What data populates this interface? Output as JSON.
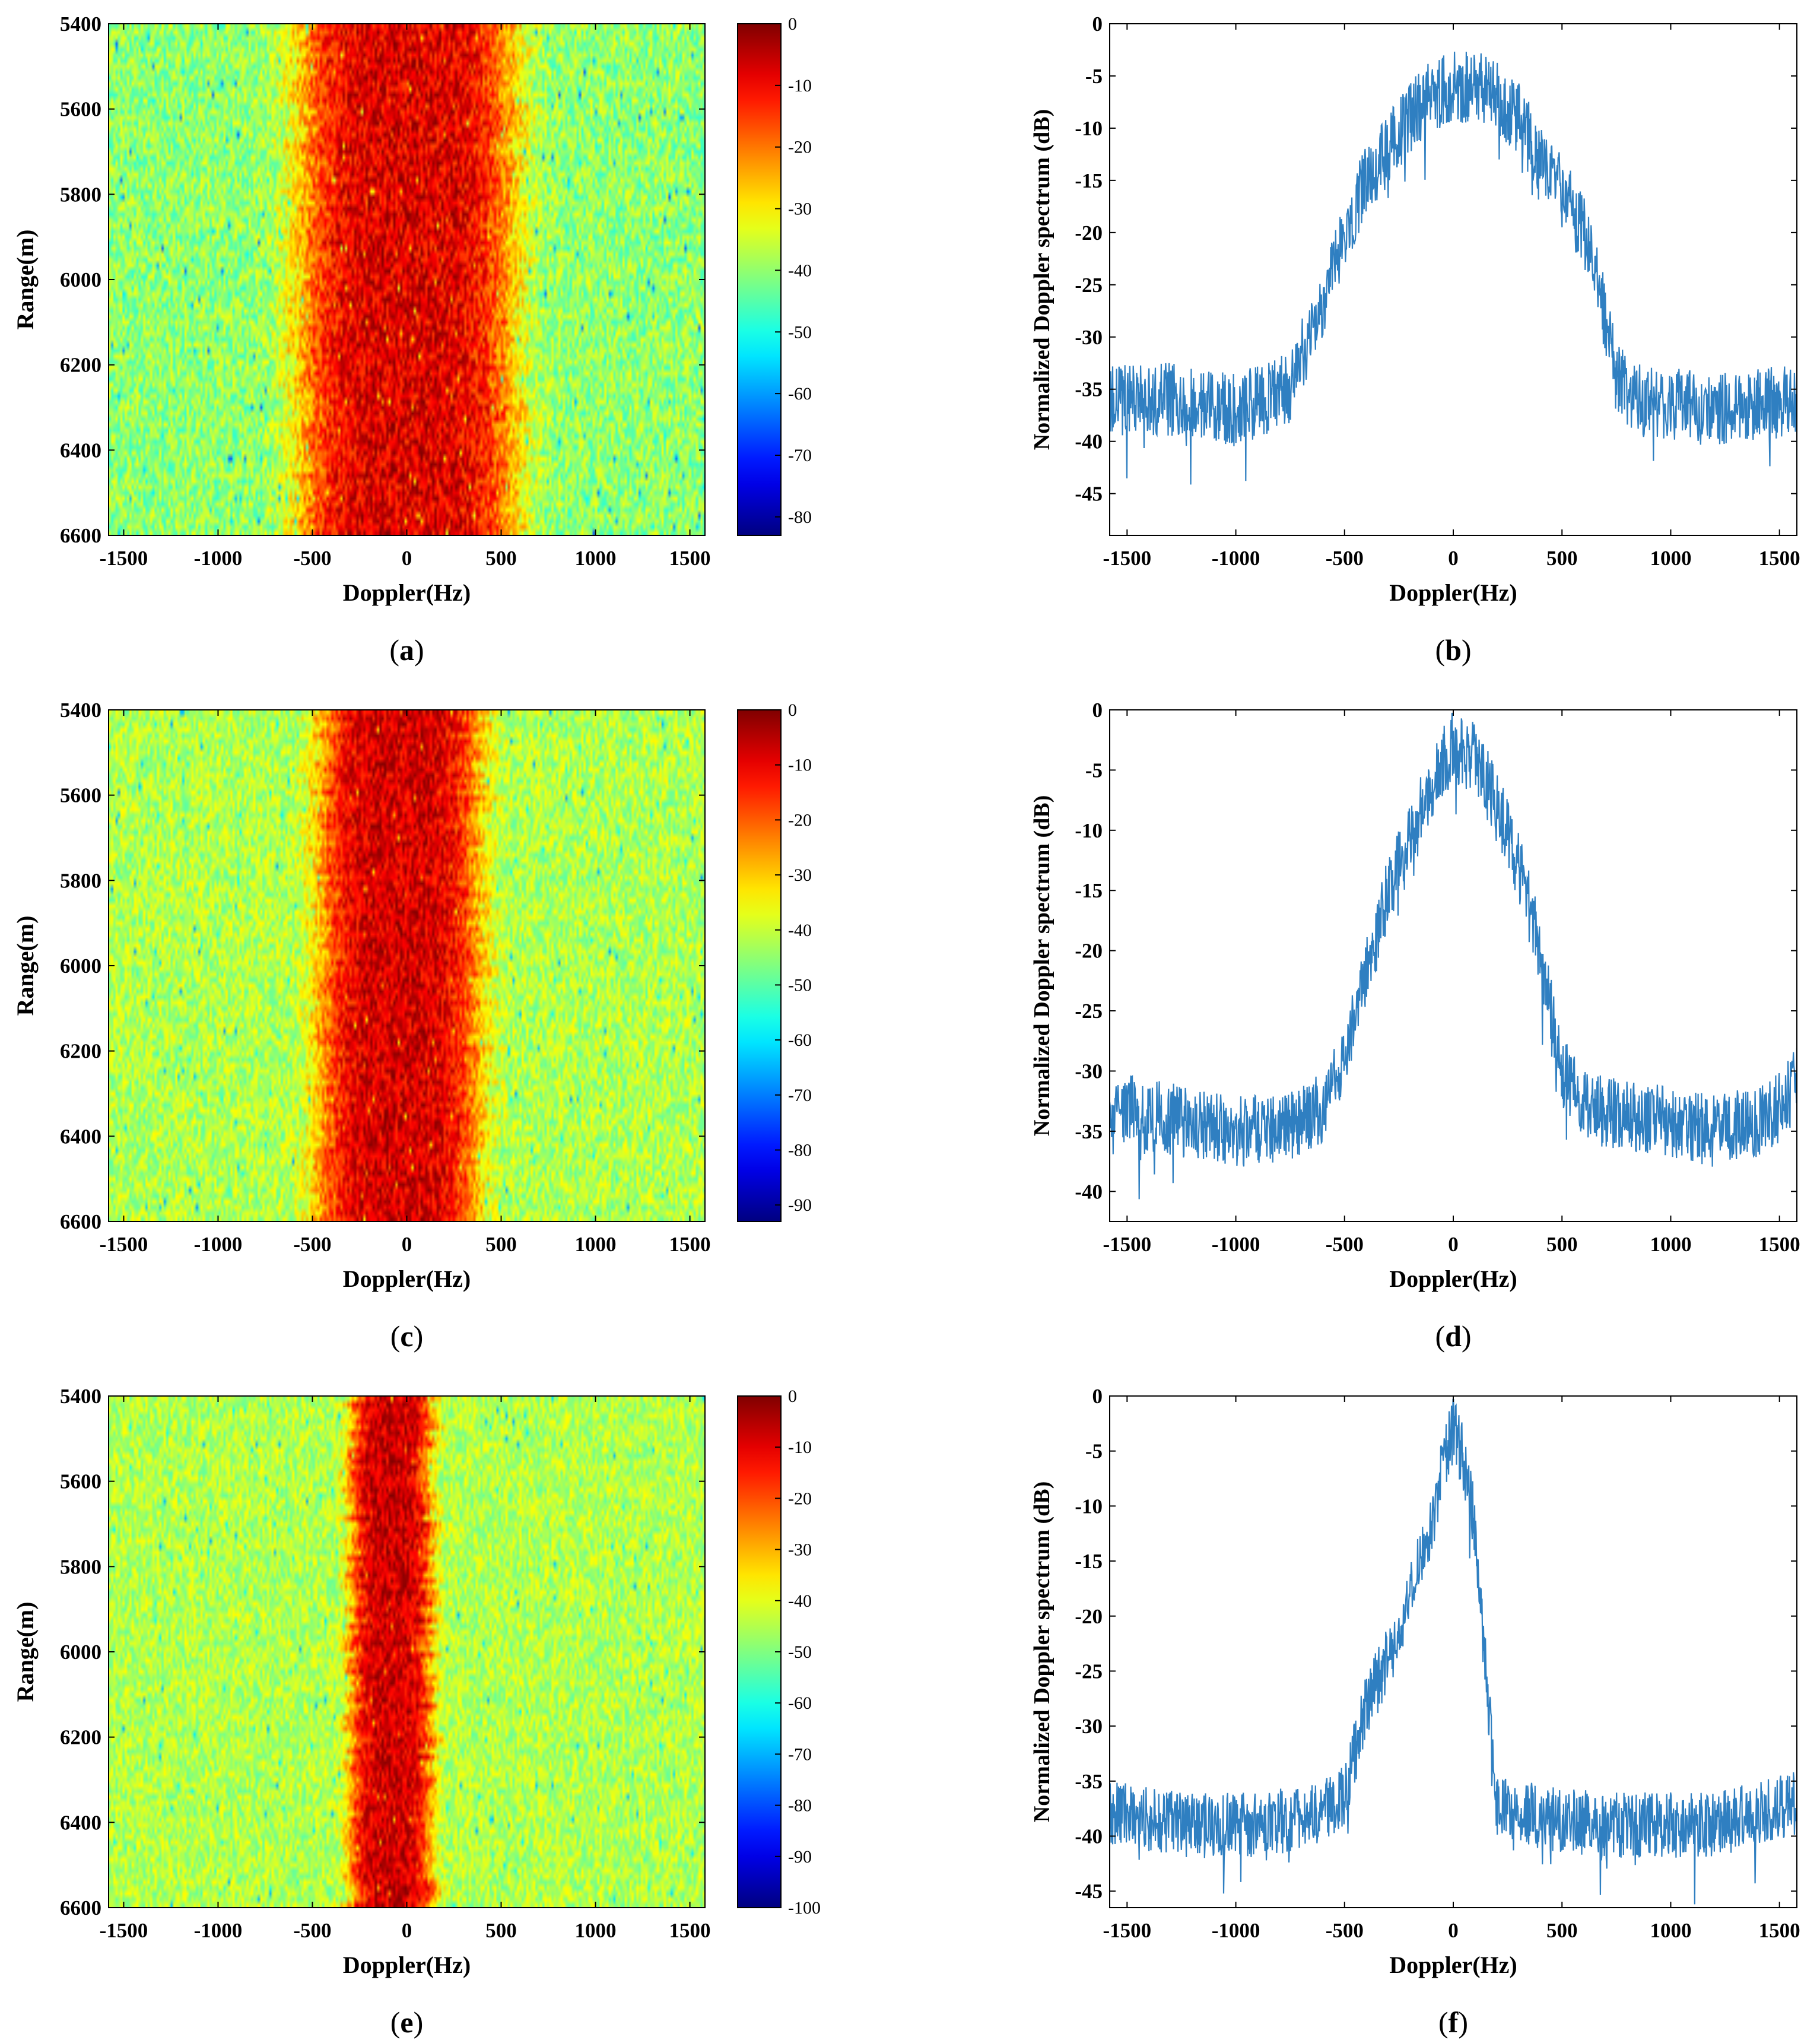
{
  "chart_data": [
    {
      "id": "a",
      "type": "heatmap",
      "panel_label": "a",
      "xlabel": "Doppler(Hz)",
      "ylabel": "Range(m)",
      "xlim": [
        -1580,
        1580
      ],
      "ylim": [
        5400,
        6600
      ],
      "xticks": [
        -1500,
        -1000,
        -500,
        0,
        500,
        1000,
        1500
      ],
      "yticks": [
        5400,
        5600,
        5800,
        6000,
        6200,
        6400,
        6600
      ],
      "colorbar": {
        "min": -83,
        "max": 0,
        "ticks": [
          0,
          -10,
          -20,
          -30,
          -40,
          -50,
          -60,
          -70,
          -80
        ]
      },
      "signal": {
        "center_hz": 0,
        "half_width_hz": 580,
        "peak_db": -8,
        "noise_floor_db": -40
      }
    },
    {
      "id": "b",
      "type": "line",
      "panel_label": "b",
      "xlabel": "Doppler(Hz)",
      "ylabel": "Normalized Doppler spectrum  (dB)",
      "xlim": [
        -1580,
        1580
      ],
      "ylim": [
        -49,
        0
      ],
      "xticks": [
        -1500,
        -1000,
        -500,
        0,
        500,
        1000,
        1500
      ],
      "yticks": [
        0,
        -5,
        -10,
        -15,
        -20,
        -25,
        -30,
        -35,
        -40,
        -45
      ],
      "series": [
        {
          "name": "spectrum",
          "color": "#2f7fc1",
          "points": [
            [
              -1580,
              -36
            ],
            [
              -1300,
              -36
            ],
            [
              -1000,
              -37
            ],
            [
              -750,
              -35
            ],
            [
              -700,
              -32
            ],
            [
              -600,
              -27
            ],
            [
              -500,
              -20
            ],
            [
              -400,
              -15
            ],
            [
              -300,
              -12
            ],
            [
              -200,
              -9
            ],
            [
              -100,
              -7
            ],
            [
              0,
              -6
            ],
            [
              100,
              -6
            ],
            [
              200,
              -7
            ],
            [
              300,
              -9
            ],
            [
              400,
              -13
            ],
            [
              500,
              -16
            ],
            [
              600,
              -20
            ],
            [
              700,
              -28
            ],
            [
              750,
              -34
            ],
            [
              850,
              -36
            ],
            [
              1200,
              -37
            ],
            [
              1580,
              -36
            ]
          ],
          "noise_db": 3.5
        }
      ]
    },
    {
      "id": "c",
      "type": "heatmap",
      "panel_label": "c",
      "xlabel": "Doppler(Hz)",
      "ylabel": "Range(m)",
      "xlim": [
        -1580,
        1580
      ],
      "ylim": [
        5400,
        6600
      ],
      "xticks": [
        -1500,
        -1000,
        -500,
        0,
        500,
        1000,
        1500
      ],
      "yticks": [
        5400,
        5600,
        5800,
        6000,
        6200,
        6400,
        6600
      ],
      "colorbar": {
        "min": -93,
        "max": 0,
        "ticks": [
          0,
          -10,
          -20,
          -30,
          -40,
          -50,
          -60,
          -70,
          -80,
          -90
        ]
      },
      "signal": {
        "center_hz": -40,
        "half_width_hz": 430,
        "peak_db": -8,
        "noise_floor_db": -42
      }
    },
    {
      "id": "d",
      "type": "line",
      "panel_label": "d",
      "xlabel": "Doppler(Hz)",
      "ylabel": "Normalized Doppler spectrum  (dB)",
      "xlim": [
        -1580,
        1580
      ],
      "ylim": [
        -42.5,
        0
      ],
      "xticks": [
        -1500,
        -1000,
        -500,
        0,
        500,
        1000,
        1500
      ],
      "yticks": [
        0,
        -5,
        -10,
        -15,
        -20,
        -25,
        -30,
        -35,
        -40
      ],
      "series": [
        {
          "name": "spectrum",
          "color": "#2f7fc1",
          "points": [
            [
              -1580,
              -33
            ],
            [
              -1300,
              -34
            ],
            [
              -1000,
              -35
            ],
            [
              -800,
              -35
            ],
            [
              -600,
              -33
            ],
            [
              -500,
              -29
            ],
            [
              -400,
              -22
            ],
            [
              -300,
              -15
            ],
            [
              -200,
              -11
            ],
            [
              -100,
              -6
            ],
            [
              0,
              -3
            ],
            [
              100,
              -4
            ],
            [
              200,
              -8
            ],
            [
              300,
              -13
            ],
            [
              400,
              -20
            ],
            [
              500,
              -30
            ],
            [
              600,
              -33
            ],
            [
              900,
              -34
            ],
            [
              1200,
              -35
            ],
            [
              1450,
              -34
            ],
            [
              1580,
              -31
            ]
          ],
          "noise_db": 3
        }
      ]
    },
    {
      "id": "e",
      "type": "heatmap",
      "panel_label": "e",
      "xlabel": "Doppler(Hz)",
      "ylabel": "Range(m)",
      "xlim": [
        -1580,
        1580
      ],
      "ylim": [
        5400,
        6600
      ],
      "xticks": [
        -1500,
        -1000,
        -500,
        0,
        500,
        1000,
        1500
      ],
      "yticks": [
        5400,
        5600,
        5800,
        6000,
        6200,
        6400,
        6600
      ],
      "colorbar": {
        "min": -100,
        "max": 0,
        "ticks": [
          0,
          -10,
          -20,
          -30,
          -40,
          -50,
          -60,
          -70,
          -80,
          -90,
          -100
        ]
      },
      "signal": {
        "center_hz": -80,
        "half_width_hz": 220,
        "peak_db": -8,
        "noise_floor_db": -45
      }
    },
    {
      "id": "f",
      "type": "line",
      "panel_label": "f",
      "xlabel": "Doppler(Hz)",
      "ylabel": "Normalized Doppler spectrum  (dB)",
      "xlim": [
        -1580,
        1580
      ],
      "ylim": [
        -46.5,
        0
      ],
      "xticks": [
        -1500,
        -1000,
        -500,
        0,
        500,
        1000,
        1500
      ],
      "yticks": [
        0,
        -5,
        -10,
        -15,
        -20,
        -25,
        -30,
        -35,
        -40,
        -45
      ],
      "series": [
        {
          "name": "spectrum",
          "color": "#2f7fc1",
          "points": [
            [
              -1580,
              -38
            ],
            [
              -1200,
              -39
            ],
            [
              -900,
              -39
            ],
            [
              -600,
              -38
            ],
            [
              -500,
              -36
            ],
            [
              -400,
              -28
            ],
            [
              -300,
              -24
            ],
            [
              -200,
              -18
            ],
            [
              -100,
              -12
            ],
            [
              -50,
              -6
            ],
            [
              0,
              -3
            ],
            [
              50,
              -6
            ],
            [
              100,
              -12
            ],
            [
              150,
              -25
            ],
            [
              200,
              -37
            ],
            [
              300,
              -38
            ],
            [
              700,
              -39
            ],
            [
              1200,
              -39
            ],
            [
              1580,
              -37
            ]
          ],
          "noise_db": 3
        }
      ]
    }
  ]
}
